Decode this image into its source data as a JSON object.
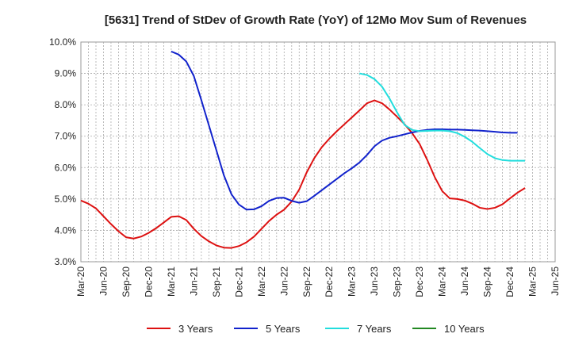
{
  "chart_data": {
    "type": "line",
    "title": "[5631]  Trend of StDev of Growth Rate (YoY) of 12Mo Mov Sum of Revenues",
    "xlabel": "",
    "ylabel": "",
    "ylim": [
      3.0,
      10.0
    ],
    "yticks": [
      "3.0%",
      "4.0%",
      "5.0%",
      "6.0%",
      "7.0%",
      "8.0%",
      "9.0%",
      "10.0%"
    ],
    "xticks": [
      "Mar-20",
      "Jun-20",
      "Sep-20",
      "Dec-20",
      "Mar-21",
      "Jun-21",
      "Sep-21",
      "Dec-21",
      "Mar-22",
      "Jun-22",
      "Sep-22",
      "Dec-22",
      "Mar-23",
      "Jun-23",
      "Sep-23",
      "Dec-23",
      "Mar-24",
      "Jun-24",
      "Sep-24",
      "Dec-24",
      "Mar-25",
      "Jun-25"
    ],
    "x_count": 64,
    "series": [
      {
        "name": "3 Years",
        "color": "#dd1111",
        "start": 0,
        "values": [
          4.95,
          4.85,
          4.7,
          4.45,
          4.2,
          3.97,
          3.78,
          3.74,
          3.8,
          3.92,
          4.07,
          4.25,
          4.43,
          4.45,
          4.33,
          4.05,
          3.82,
          3.65,
          3.52,
          3.45,
          3.44,
          3.5,
          3.62,
          3.8,
          4.05,
          4.3,
          4.5,
          4.66,
          4.92,
          5.3,
          5.85,
          6.3,
          6.65,
          6.92,
          7.16,
          7.38,
          7.6,
          7.82,
          8.05,
          8.14,
          8.05,
          7.85,
          7.62,
          7.38,
          7.1,
          6.75,
          6.25,
          5.7,
          5.25,
          5.02,
          5.0,
          4.95,
          4.85,
          4.72,
          4.68,
          4.72,
          4.83,
          5.02,
          5.2,
          5.35
        ]
      },
      {
        "name": "5 Years",
        "color": "#1122cc",
        "start": 12,
        "values": [
          9.7,
          9.6,
          9.38,
          8.92,
          8.15,
          7.35,
          6.55,
          5.75,
          5.15,
          4.82,
          4.66,
          4.67,
          4.77,
          4.94,
          5.03,
          5.04,
          4.94,
          4.88,
          4.93,
          5.1,
          5.28,
          5.46,
          5.64,
          5.82,
          5.98,
          6.16,
          6.4,
          6.68,
          6.86,
          6.95,
          7.0,
          7.06,
          7.12,
          7.17,
          7.2,
          7.22,
          7.22,
          7.21,
          7.21,
          7.2,
          7.19,
          7.18,
          7.16,
          7.14,
          7.12,
          7.11,
          7.11
        ]
      },
      {
        "name": "7 Years",
        "color": "#22dddd",
        "start": 37,
        "values": [
          9.0,
          8.95,
          8.82,
          8.58,
          8.2,
          7.76,
          7.36,
          7.2,
          7.16,
          7.17,
          7.18,
          7.18,
          7.16,
          7.1,
          6.98,
          6.82,
          6.62,
          6.43,
          6.3,
          6.24,
          6.22,
          6.22,
          6.22
        ]
      },
      {
        "name": "10 Years",
        "color": "#228822",
        "start": 0,
        "values": []
      }
    ],
    "legend_position": "bottom",
    "grid": true
  }
}
